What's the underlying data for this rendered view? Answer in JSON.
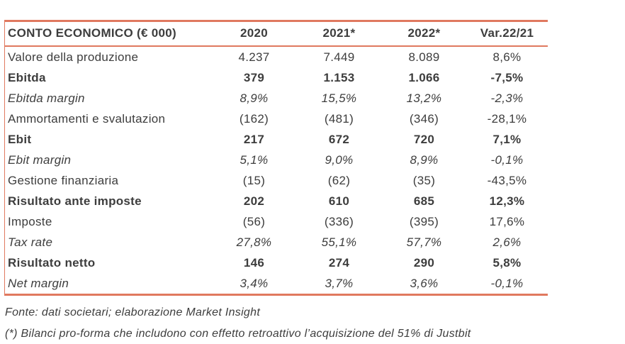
{
  "colors": {
    "accent": "#e0795f",
    "text": "#3d3d3d"
  },
  "chart_data": {
    "type": "table",
    "title": "CONTO ECONOMICO (€ 000)",
    "columns": [
      "CONTO ECONOMICO (€ 000)",
      "2020",
      "2021*",
      "2022*",
      "Var.22/21"
    ],
    "rows": [
      {
        "label": "Valore della produzione",
        "values": [
          "4.237",
          "7.449",
          "8.089",
          "8,6%"
        ],
        "emphasis": "normal"
      },
      {
        "label": "Ebitda",
        "values": [
          "379",
          "1.153",
          "1.066",
          "-7,5%"
        ],
        "emphasis": "bold"
      },
      {
        "label": "Ebitda margin",
        "values": [
          "8,9%",
          "15,5%",
          "13,2%",
          "-2,3%"
        ],
        "emphasis": "italic"
      },
      {
        "label": "Ammortamenti e svalutazion",
        "values": [
          "(162)",
          "(481)",
          "(346)",
          "-28,1%"
        ],
        "emphasis": "normal"
      },
      {
        "label": "Ebit",
        "values": [
          "217",
          "672",
          "720",
          "7,1%"
        ],
        "emphasis": "bold"
      },
      {
        "label": "Ebit margin",
        "values": [
          "5,1%",
          "9,0%",
          "8,9%",
          "-0,1%"
        ],
        "emphasis": "italic"
      },
      {
        "label": "Gestione finanziaria",
        "values": [
          "(15)",
          "(62)",
          "(35)",
          "-43,5%"
        ],
        "emphasis": "normal"
      },
      {
        "label": "Risultato ante imposte",
        "values": [
          "202",
          "610",
          "685",
          "12,3%"
        ],
        "emphasis": "bold"
      },
      {
        "label": "Imposte",
        "values": [
          "(56)",
          "(336)",
          "(395)",
          "17,6%"
        ],
        "emphasis": "normal"
      },
      {
        "label": "Tax rate",
        "values": [
          "27,8%",
          "55,1%",
          "57,7%",
          "2,6%"
        ],
        "emphasis": "italic"
      },
      {
        "label": "Risultato netto",
        "values": [
          "146",
          "274",
          "290",
          "5,8%"
        ],
        "emphasis": "bold"
      },
      {
        "label": "Net margin",
        "values": [
          "3,4%",
          "3,7%",
          "3,6%",
          "-0,1%"
        ],
        "emphasis": "italic"
      }
    ]
  },
  "footnotes": {
    "source": "Fonte: dati societari; elaborazione Market Insight",
    "note": "(*) Bilanci pro-forma che includono con effetto retroattivo l’acquisizione del 51% di Justbit"
  }
}
